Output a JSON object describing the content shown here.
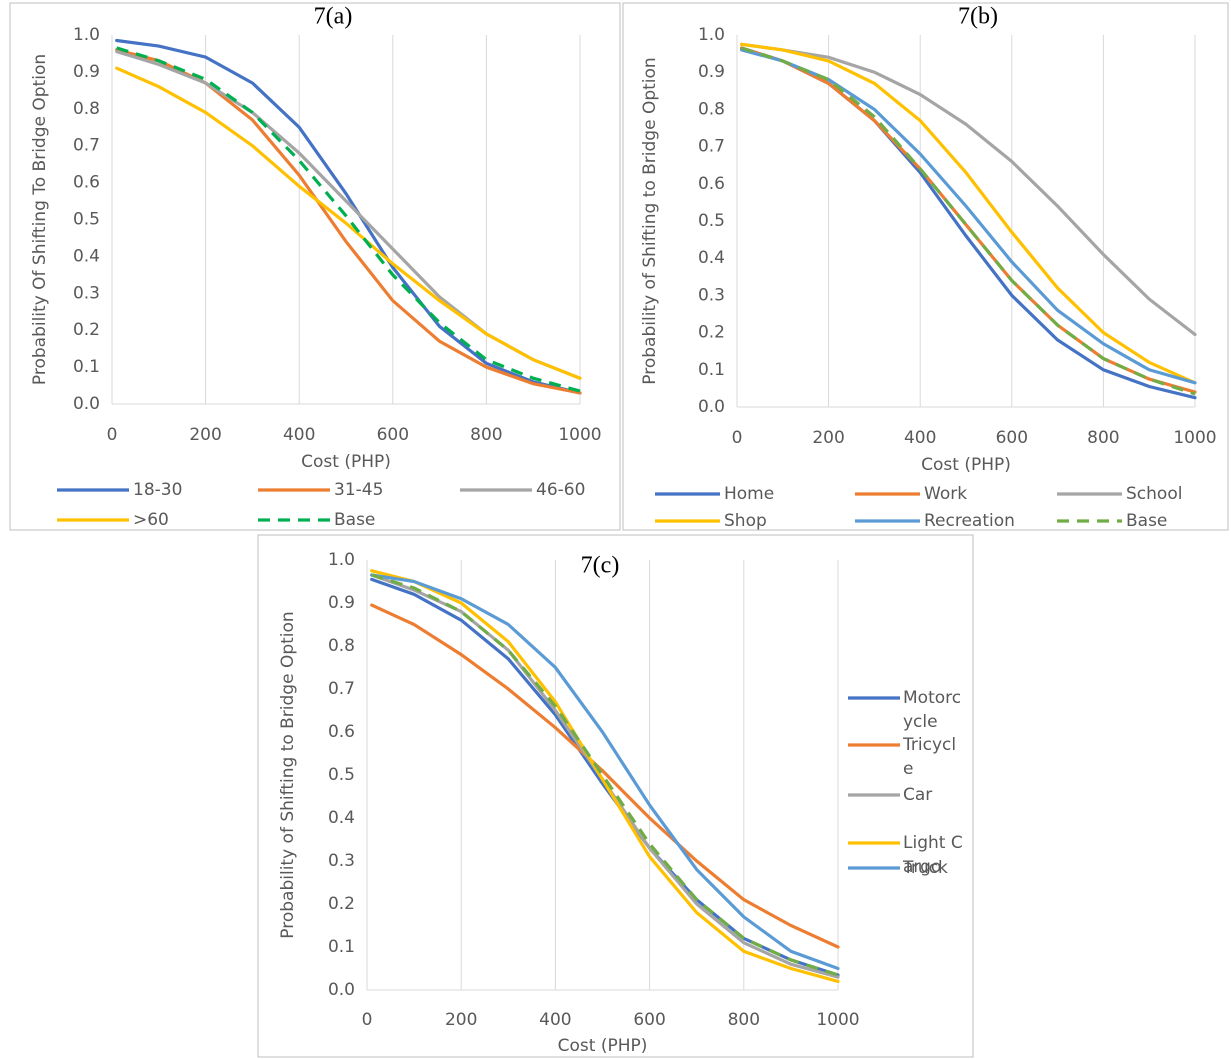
{
  "chart_data": [
    {
      "type": "line",
      "title": "7(a)",
      "x_label": "Cost (PHP)",
      "y_label": "Probability Of Shifting To Bridge Option",
      "x": [
        10,
        100,
        200,
        300,
        400,
        500,
        600,
        700,
        800,
        900,
        1000
      ],
      "xlim": [
        0,
        1000
      ],
      "xticks": [
        0,
        200,
        400,
        600,
        800,
        1000
      ],
      "ylim": [
        0,
        1
      ],
      "yticks": [
        {
          "value": 0,
          "label": "0.0"
        },
        0.1,
        0.2,
        0.3,
        0.4,
        0.5,
        0.6,
        0.7,
        0.8,
        0.9,
        {
          "value": 1,
          "label": "1.0"
        }
      ],
      "grid": "x",
      "legend": "bottom",
      "series": [
        {
          "name": "18-30",
          "color": "#4472c4",
          "values": [
            0.985,
            0.97,
            0.94,
            0.87,
            0.75,
            0.57,
            0.37,
            0.21,
            0.11,
            0.06,
            0.03
          ]
        },
        {
          "name": "31-45",
          "color": "#ed7d31",
          "values": [
            0.96,
            0.93,
            0.87,
            0.77,
            0.62,
            0.44,
            0.28,
            0.17,
            0.1,
            0.055,
            0.03
          ]
        },
        {
          "name": "46-60",
          "color": "#a5a5a5",
          "values": [
            0.955,
            0.92,
            0.87,
            0.79,
            0.68,
            0.55,
            0.42,
            0.29,
            0.19,
            0.12,
            0.07
          ]
        },
        {
          "name": ">60",
          "color": "#ffc000",
          "values": [
            0.91,
            0.86,
            0.79,
            0.7,
            0.59,
            0.49,
            0.38,
            0.28,
            0.19,
            0.12,
            0.07
          ]
        },
        {
          "name": "Base",
          "color": "#00b050",
          "dashed": true,
          "values": [
            0.965,
            0.93,
            0.88,
            0.79,
            0.66,
            0.51,
            0.35,
            0.22,
            0.12,
            0.07,
            0.035
          ]
        }
      ]
    },
    {
      "type": "line",
      "title": "7(b)",
      "x_label": "Cost (PHP)",
      "y_label": "Probability of Shifting to Bridge Option",
      "x": [
        10,
        100,
        200,
        300,
        400,
        500,
        600,
        700,
        800,
        900,
        1000
      ],
      "xlim": [
        0,
        1000
      ],
      "xticks": [
        0,
        200,
        400,
        600,
        800,
        1000
      ],
      "ylim": [
        0,
        1
      ],
      "yticks": [
        {
          "value": 0,
          "label": "0.0"
        },
        0.1,
        0.2,
        0.3,
        0.4,
        0.5,
        0.6,
        0.7,
        0.8,
        0.9,
        {
          "value": 1,
          "label": "1.0"
        }
      ],
      "grid": "x",
      "legend": "bottom",
      "series": [
        {
          "name": "Home",
          "color": "#4472c4",
          "values": [
            0.965,
            0.93,
            0.87,
            0.77,
            0.63,
            0.46,
            0.3,
            0.18,
            0.1,
            0.055,
            0.025
          ]
        },
        {
          "name": "Work",
          "color": "#ed7d31",
          "values": [
            0.965,
            0.93,
            0.87,
            0.77,
            0.64,
            0.49,
            0.34,
            0.22,
            0.13,
            0.075,
            0.04
          ]
        },
        {
          "name": "School",
          "color": "#a5a5a5",
          "values": [
            0.975,
            0.96,
            0.94,
            0.9,
            0.84,
            0.76,
            0.66,
            0.54,
            0.41,
            0.29,
            0.195
          ]
        },
        {
          "name": "Shop",
          "color": "#ffc000",
          "values": [
            0.975,
            0.96,
            0.93,
            0.87,
            0.77,
            0.63,
            0.47,
            0.32,
            0.2,
            0.12,
            0.065
          ]
        },
        {
          "name": "Recreation",
          "color": "#5b9bd5",
          "values": [
            0.96,
            0.93,
            0.88,
            0.8,
            0.68,
            0.54,
            0.39,
            0.26,
            0.17,
            0.1,
            0.065
          ]
        },
        {
          "name": "Base",
          "color": "#70ad47",
          "dashed": true,
          "values": [
            0.965,
            0.93,
            0.88,
            0.78,
            0.64,
            0.49,
            0.34,
            0.22,
            0.13,
            0.075,
            0.035
          ]
        }
      ]
    },
    {
      "type": "line",
      "title": "7(c)",
      "x_label": "Cost (PHP)",
      "y_label": "Probability of Shifting to Bridge Option",
      "x": [
        10,
        100,
        200,
        300,
        400,
        500,
        600,
        700,
        800,
        900,
        1000
      ],
      "xlim": [
        0,
        1000
      ],
      "xticks": [
        0,
        200,
        400,
        600,
        800,
        1000
      ],
      "ylim": [
        0,
        1
      ],
      "yticks": [
        {
          "value": 0,
          "label": "0.0"
        },
        0.1,
        0.2,
        0.3,
        0.4,
        0.5,
        0.6,
        0.7,
        0.8,
        0.9,
        {
          "value": 1,
          "label": "1.0"
        }
      ],
      "grid": "x",
      "legend": "right",
      "series": [
        {
          "name": "Motorcycle",
          "color": "#4472c4",
          "values": [
            0.955,
            0.92,
            0.86,
            0.77,
            0.64,
            0.48,
            0.33,
            0.21,
            0.12,
            0.07,
            0.035
          ]
        },
        {
          "name": "Tricycle",
          "color": "#ed7d31",
          "values": [
            0.895,
            0.85,
            0.78,
            0.7,
            0.61,
            0.51,
            0.4,
            0.3,
            0.21,
            0.15,
            0.1
          ]
        },
        {
          "name": "Car",
          "color": "#a5a5a5",
          "values": [
            0.965,
            0.93,
            0.88,
            0.79,
            0.65,
            0.49,
            0.33,
            0.2,
            0.11,
            0.06,
            0.03
          ]
        },
        {
          "name": "Light Cargo",
          "color": "#ffc000",
          "values": [
            0.975,
            0.95,
            0.9,
            0.81,
            0.67,
            0.49,
            0.31,
            0.18,
            0.09,
            0.05,
            0.02
          ]
        },
        {
          "name": "Truck",
          "color": "#5b9bd5",
          "values": [
            0.965,
            0.95,
            0.91,
            0.85,
            0.75,
            0.6,
            0.43,
            0.28,
            0.17,
            0.09,
            0.05
          ]
        },
        {
          "color": "#70ad47",
          "dashed": true,
          "values": [
            0.965,
            0.935,
            0.88,
            0.79,
            0.66,
            0.5,
            0.34,
            0.21,
            0.12,
            0.07,
            0.035
          ]
        }
      ]
    }
  ]
}
